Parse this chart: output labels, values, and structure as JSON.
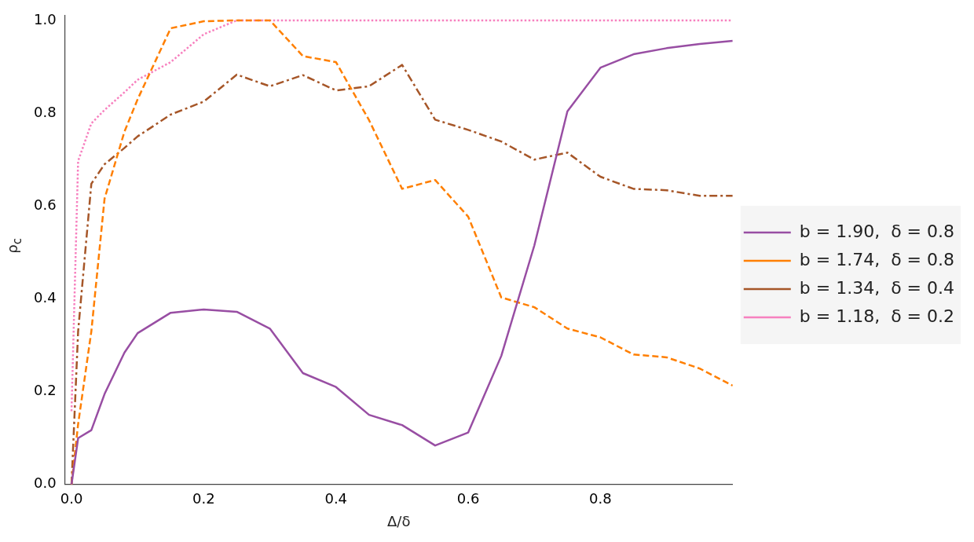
{
  "chart_data": {
    "type": "line",
    "xlabel": "Δ/δ",
    "ylabel": "ρ$_{c}$",
    "x": [
      0,
      0.01,
      0.03,
      0.05,
      0.08,
      0.1,
      0.15,
      0.2,
      0.25,
      0.3,
      0.35,
      0.4,
      0.45,
      0.5,
      0.55,
      0.6,
      0.65,
      0.7,
      0.75,
      0.8,
      0.85,
      0.9,
      0.95,
      1.0
    ],
    "series": [
      {
        "name": "b = 1.90,  δ = 0.8",
        "color": "#984ea3",
        "line_style": "solid",
        "values": [
          0,
          0.1,
          0.117,
          0.195,
          0.284,
          0.326,
          0.37,
          0.377,
          0.372,
          0.336,
          0.24,
          0.21,
          0.15,
          0.128,
          0.084,
          0.112,
          0.277,
          0.515,
          0.804,
          0.898,
          0.927,
          0.94,
          0.949,
          0.956
        ]
      },
      {
        "name": "b = 1.74,  δ = 0.8",
        "color": "#ff7f00",
        "line_style": "dashed",
        "values": [
          0,
          0.13,
          0.33,
          0.616,
          0.76,
          0.83,
          0.983,
          0.998,
          1.0,
          1.0,
          0.923,
          0.91,
          0.785,
          0.637,
          0.656,
          0.577,
          0.403,
          0.382,
          0.336,
          0.317,
          0.28,
          0.274,
          0.25,
          0.213
        ]
      },
      {
        "name": "b = 1.34,  δ = 0.4",
        "color": "#a65628",
        "line_style": "dashdot",
        "values": [
          0,
          0.33,
          0.648,
          0.69,
          0.725,
          0.75,
          0.797,
          0.825,
          0.883,
          0.858,
          0.882,
          0.849,
          0.858,
          0.904,
          0.786,
          0.764,
          0.739,
          0.7,
          0.715,
          0.663,
          0.637,
          0.634,
          0.622,
          0.622
        ]
      },
      {
        "name": "b = 1.18,  δ = 0.2",
        "color": "#f781bf",
        "line_style": "dotted",
        "values": [
          0.158,
          0.697,
          0.778,
          0.807,
          0.845,
          0.872,
          0.91,
          0.97,
          1.0,
          1.0,
          1.0,
          1.0,
          1.0,
          1.0,
          1.0,
          1.0,
          1.0,
          1.0,
          1.0,
          1.0,
          1.0,
          1.0,
          1.0,
          1.0
        ]
      }
    ],
    "xlim": [
      -0.01,
      1.0
    ],
    "xticks": [
      {
        "value": 0,
        "label": "0.0"
      },
      0.2,
      0.4,
      0.6,
      0.8
    ],
    "ylim": [
      0,
      1.01
    ],
    "yticks": [
      {
        "value": 0,
        "label": "0.0"
      },
      0.2,
      0.4,
      0.6,
      0.8,
      {
        "value": 1,
        "label": "1.0"
      }
    ],
    "grid": false,
    "legend": "right",
    "marker": "none"
  }
}
